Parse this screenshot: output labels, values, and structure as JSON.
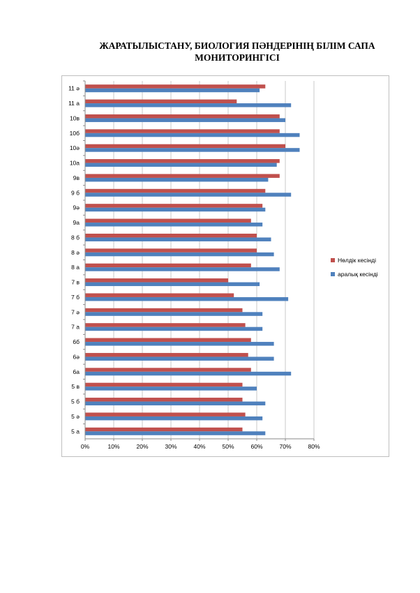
{
  "title": {
    "line1": "ЖАРАТЫЛЫСТАНУ, БИОЛОГИЯ ПӘНДЕРІНІҢ БІЛІМ САПА",
    "line2": "МОНИТОРИНГІСІ"
  },
  "colors": {
    "red": "#c0504d",
    "blue": "#4f81bd",
    "grid": "#c8c8c8",
    "axis": "#888888"
  },
  "chart_data": {
    "type": "bar",
    "orientation": "horizontal",
    "title": "ЖАРАТЫЛЫСТАНУ, БИОЛОГИЯ ПӘНДЕРІНІҢ БІЛІМ САПА МОНИТОРИНГІСІ",
    "xlim": [
      0,
      80
    ],
    "x_ticks": [
      "0%",
      "10%",
      "20%",
      "30%",
      "40%",
      "50%",
      "60%",
      "70%",
      "80%"
    ],
    "grid": true,
    "legend_position": "right",
    "categories": [
      "11 ә",
      "11 а",
      "10в",
      "10б",
      "10ә",
      "10а",
      "9в",
      "9 б",
      "9ә",
      "9а",
      "8 б",
      "8 ә",
      "8 а",
      "7 в",
      "7 б",
      "7 ә",
      "7 а",
      "6б",
      "6ә",
      "6а",
      "5 в",
      "5 б",
      "5 ә",
      "5 а"
    ],
    "series": [
      {
        "name": "Нөлдік кесінді",
        "color": "#c0504d",
        "values": [
          63,
          53,
          68,
          68,
          70,
          68,
          68,
          63,
          62,
          58,
          60,
          60,
          58,
          50,
          52,
          55,
          56,
          58,
          57,
          58,
          55,
          55,
          56,
          55
        ]
      },
      {
        "name": "аралық кесінді",
        "color": "#4f81bd",
        "values": [
          61,
          72,
          70,
          75,
          75,
          67,
          64,
          72,
          63,
          62,
          65,
          66,
          68,
          61,
          71,
          62,
          62,
          66,
          66,
          72,
          60,
          63,
          62,
          63
        ]
      }
    ]
  }
}
